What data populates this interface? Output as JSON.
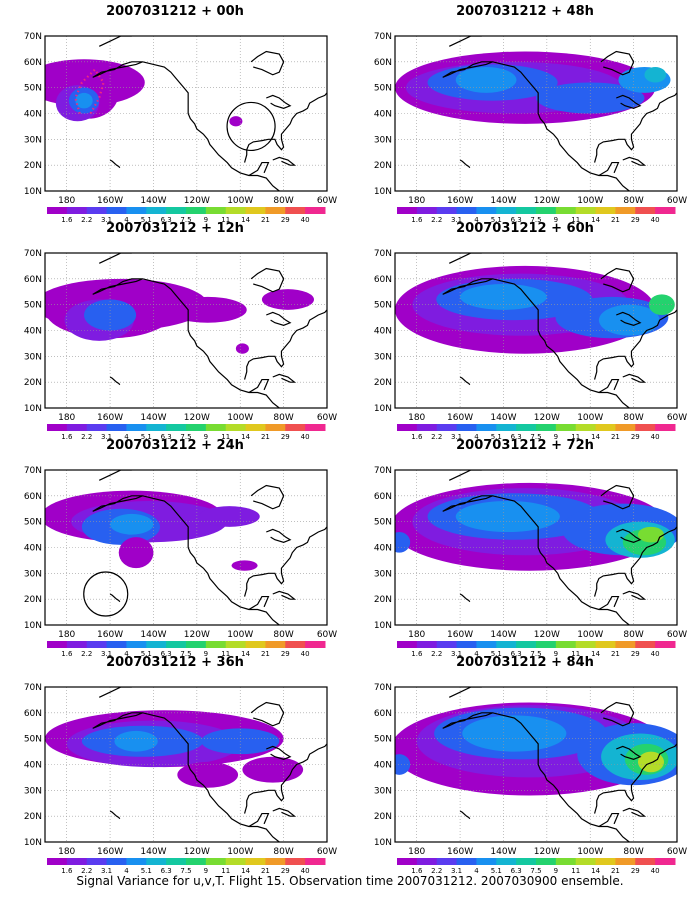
{
  "colorbar": {
    "labels": [
      "1.6",
      "2.2",
      "3.1",
      "4",
      "5.1",
      "6.3",
      "7.5",
      "9",
      "11",
      "14",
      "21",
      "29",
      "40"
    ],
    "colors": [
      "#a000c8",
      "#7f1ce0",
      "#5a3cf0",
      "#2860f0",
      "#1890f0",
      "#14b4d2",
      "#14c8a0",
      "#24d26e",
      "#78dc32",
      "#b4dc28",
      "#e0c81e",
      "#f09a28",
      "#f05050",
      "#f02890"
    ]
  },
  "axes": {
    "lon_labels": [
      "180",
      "160W",
      "140W",
      "120W",
      "100W",
      "80W",
      "60W"
    ],
    "lat_labels": [
      "10N",
      "20N",
      "30N",
      "40N",
      "50N",
      "60N",
      "70N"
    ]
  },
  "panels": [
    {
      "title": "2007031212 + 00h",
      "id": "00h"
    },
    {
      "title": "2007031212 + 48h",
      "id": "48h"
    },
    {
      "title": "2007031212 + 12h",
      "id": "12h"
    },
    {
      "title": "2007031212 + 60h",
      "id": "60h"
    },
    {
      "title": "2007031212 + 24h",
      "id": "24h"
    },
    {
      "title": "2007031212 + 72h",
      "id": "72h"
    },
    {
      "title": "2007031212 + 36h",
      "id": "36h"
    },
    {
      "title": "2007031212 + 84h",
      "id": "84h"
    }
  ],
  "footer": "Signal Variance for u,v,T. Flight 15. Observation time 2007031212. 2007030900 ensemble."
}
